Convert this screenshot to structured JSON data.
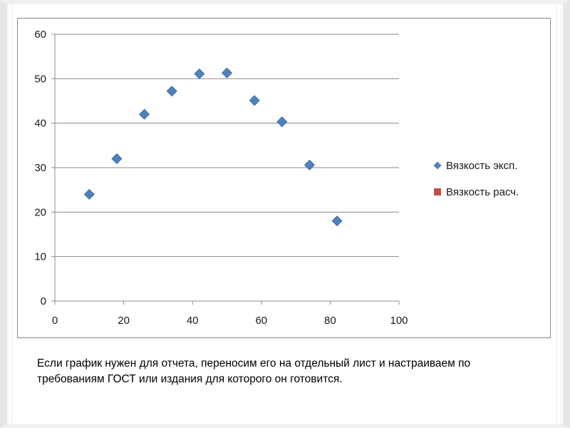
{
  "chart_data": {
    "type": "scatter",
    "title": "",
    "xlabel": "",
    "ylabel": "",
    "xlim": [
      0,
      100
    ],
    "ylim": [
      0,
      60
    ],
    "x_ticks": [
      0,
      20,
      40,
      60,
      80,
      100
    ],
    "y_ticks": [
      0,
      10,
      20,
      30,
      40,
      50,
      60
    ],
    "grid": "horizontal",
    "legend_position": "right",
    "series": [
      {
        "name": "Вязкость эксп.",
        "color": "#4f81bd",
        "marker": "diamond",
        "x": [
          10,
          18,
          26,
          34,
          42,
          50,
          58,
          66,
          74,
          82
        ],
        "y": [
          24,
          32,
          42,
          47.2,
          51.1,
          51.3,
          45.1,
          40.3,
          30.6,
          18
        ]
      },
      {
        "name": "Вязкость расч.",
        "color": "#c0504d",
        "marker": "square",
        "x": [],
        "y": []
      }
    ]
  },
  "caption": "Если график нужен для отчета, переносим его на отдельный лист и настраиваем по требованиям ГОСТ или издания для которого он готовится."
}
